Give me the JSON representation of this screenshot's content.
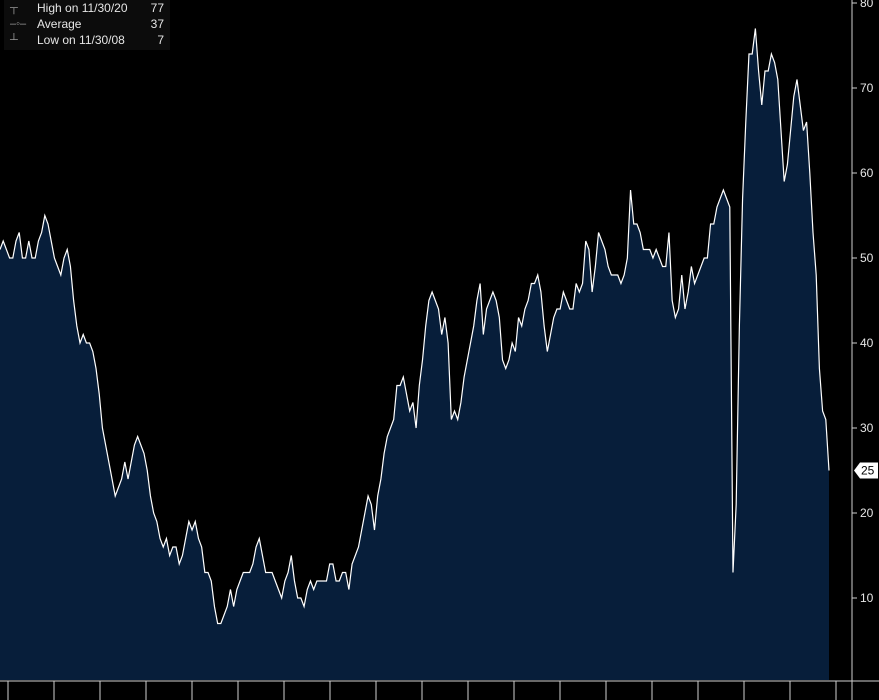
{
  "legend": {
    "high_label": "High on 11/30/20",
    "high_value": "77",
    "avg_label": "Average",
    "avg_value": "37",
    "low_label": "Low on 11/30/08",
    "low_value": "7"
  },
  "colors": {
    "background": "#000000",
    "area_fill": "#071e3a",
    "line": "#ffffff",
    "axis": "#cfcfcf",
    "last_badge": "#ffffff"
  },
  "chart_data": {
    "type": "area",
    "title": "",
    "xlabel": "",
    "ylabel": "",
    "ylim": [
      0,
      80
    ],
    "yticks": [
      10,
      20,
      30,
      40,
      50,
      60,
      70,
      80
    ],
    "y_axis_side": "right",
    "grid": false,
    "legend_position": "top-left",
    "last_value_label": "25",
    "series": [
      {
        "values": [
          51,
          52,
          51,
          50,
          50,
          52,
          53,
          50,
          50,
          52,
          50,
          50,
          52,
          53,
          55,
          54,
          52,
          50,
          49,
          48,
          50,
          51,
          49,
          45,
          42,
          40,
          41,
          40,
          40,
          39,
          37,
          34,
          30,
          28,
          26,
          24,
          22,
          23,
          24,
          26,
          24,
          26,
          28,
          29,
          28,
          27,
          25,
          22,
          20,
          19,
          17,
          16,
          17,
          15,
          16,
          16,
          14,
          15,
          17,
          19,
          18,
          19,
          17,
          16,
          13,
          13,
          12,
          9,
          7,
          7,
          8,
          9,
          11,
          9,
          11,
          12,
          13,
          13,
          13,
          14,
          16,
          17,
          15,
          13,
          13,
          13,
          12,
          11,
          10,
          12,
          13,
          15,
          12,
          10,
          10,
          9,
          11,
          12,
          11,
          12,
          12,
          12,
          12,
          14,
          14,
          12,
          12,
          13,
          13,
          11,
          14,
          15,
          16,
          18,
          20,
          22,
          21,
          18,
          22,
          24,
          27,
          29,
          30,
          31,
          35,
          35,
          36,
          34,
          32,
          33,
          30,
          35,
          38,
          42,
          45,
          46,
          45,
          44,
          41,
          43,
          40,
          31,
          32,
          31,
          33,
          36,
          38,
          40,
          42,
          45,
          47,
          41,
          44,
          45,
          46,
          45,
          43,
          38,
          37,
          38,
          40,
          39,
          43,
          42,
          44,
          45,
          47,
          47,
          48,
          46,
          42,
          39,
          41,
          43,
          44,
          44,
          46,
          45,
          44,
          44,
          47,
          46,
          47,
          52,
          51,
          46,
          49,
          53,
          52,
          51,
          49,
          48,
          48,
          48,
          47,
          48,
          50,
          58,
          54,
          54,
          53,
          51,
          51,
          51,
          50,
          51,
          50,
          49,
          49,
          53,
          45,
          43,
          44,
          48,
          44,
          46,
          49,
          47,
          48,
          49,
          50,
          50,
          54,
          54,
          56,
          57,
          58,
          57,
          56,
          13,
          21,
          42,
          57,
          66,
          74,
          74,
          77,
          72,
          68,
          72,
          72,
          74,
          73,
          71,
          65,
          59,
          61,
          65,
          69,
          71,
          68,
          65,
          66,
          60,
          53,
          48,
          37,
          32,
          31,
          25
        ]
      }
    ]
  }
}
